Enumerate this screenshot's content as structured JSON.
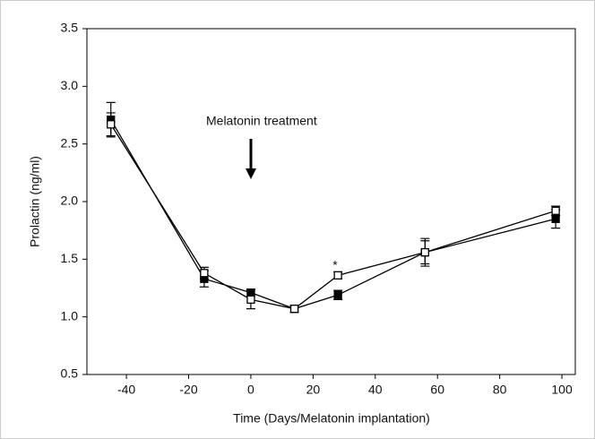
{
  "chart_data": {
    "type": "line",
    "x_label": "Time (Days/Melatonin implantation)",
    "y_label": "Prolactin (ng/ml)",
    "annotations": [
      "Melatonin treatment",
      "*"
    ],
    "x": [
      -45,
      -15,
      0,
      14,
      28,
      56,
      98
    ],
    "series": [
      {
        "color": "#000000",
        "marker": "filled-square",
        "values": [
          2.71,
          1.33,
          1.21,
          1.07,
          1.19,
          1.56,
          1.85
        ],
        "errors": [
          0.15,
          0.07,
          0.03,
          0.03,
          0.04,
          0.1,
          0.08
        ]
      },
      {
        "color": "#000000",
        "marker": "open-square",
        "values": [
          2.67,
          1.38,
          1.15,
          1.07,
          1.36,
          1.56,
          1.92
        ],
        "errors": [
          0.1,
          0.05,
          0.08,
          0.03,
          0.03,
          0.12,
          0.04
        ]
      }
    ],
    "xlim": [
      -52.7,
      104.3
    ],
    "xticks": [
      -40,
      -20,
      0,
      20,
      40,
      60,
      80,
      100
    ],
    "ylim": [
      0.5,
      3.5
    ],
    "yticks": [
      0.5,
      {
        "value": 1.0,
        "label": "1.0"
      },
      1.5,
      {
        "value": 2.0,
        "label": "2.0"
      },
      2.5,
      {
        "value": 3.0,
        "label": "3.0"
      },
      3.5
    ]
  }
}
